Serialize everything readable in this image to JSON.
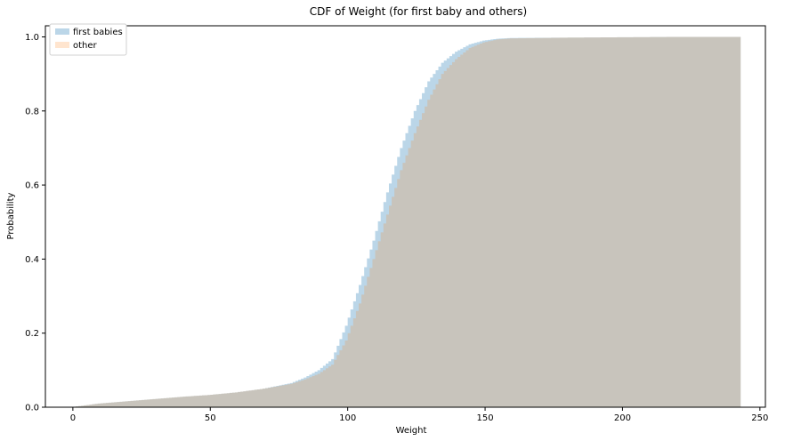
{
  "chart_data": {
    "type": "area",
    "title": "CDF of Weight (for first baby and others)",
    "xlabel": "Weight",
    "ylabel": "Probability",
    "xlim": [
      -10,
      252
    ],
    "ylim": [
      0,
      1.03
    ],
    "xticks": [
      0,
      50,
      100,
      150,
      200,
      250
    ],
    "yticks": [
      0.0,
      0.2,
      0.4,
      0.6,
      0.8,
      1.0
    ],
    "legend_position": "top-left",
    "grid": false,
    "series": [
      {
        "name": "first babies",
        "color": "#1f77b4",
        "x": [
          0,
          10,
          20,
          30,
          40,
          50,
          60,
          70,
          80,
          85,
          90,
          95,
          100,
          105,
          110,
          115,
          120,
          125,
          130,
          135,
          140,
          145,
          150,
          155,
          160,
          180,
          200,
          220,
          243
        ],
        "y": [
          0.0,
          0.01,
          0.016,
          0.022,
          0.028,
          0.033,
          0.04,
          0.05,
          0.065,
          0.08,
          0.1,
          0.13,
          0.22,
          0.33,
          0.45,
          0.58,
          0.7,
          0.8,
          0.88,
          0.93,
          0.96,
          0.98,
          0.99,
          0.995,
          0.997,
          0.998,
          0.999,
          1.0,
          1.0
        ]
      },
      {
        "name": "other",
        "color": "#ff7f0e",
        "x": [
          0,
          10,
          20,
          30,
          40,
          50,
          60,
          70,
          80,
          85,
          90,
          95,
          100,
          105,
          110,
          115,
          120,
          125,
          130,
          135,
          140,
          145,
          150,
          155,
          160,
          180,
          200,
          220,
          243
        ],
        "y": [
          0.0,
          0.01,
          0.016,
          0.022,
          0.028,
          0.033,
          0.04,
          0.05,
          0.063,
          0.075,
          0.09,
          0.115,
          0.18,
          0.28,
          0.4,
          0.52,
          0.64,
          0.74,
          0.83,
          0.9,
          0.94,
          0.97,
          0.985,
          0.993,
          0.996,
          0.998,
          0.999,
          1.0,
          1.0
        ]
      }
    ]
  }
}
